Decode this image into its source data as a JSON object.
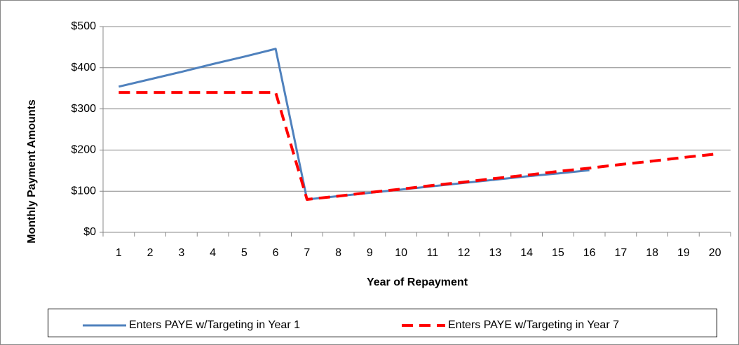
{
  "chart_data": {
    "type": "line",
    "x_label": "Year of Repayment",
    "y_label": "Monthly Payment Amounts",
    "categories": [
      "1",
      "2",
      "3",
      "4",
      "5",
      "6",
      "7",
      "8",
      "9",
      "10",
      "11",
      "12",
      "13",
      "14",
      "15",
      "16",
      "17",
      "18",
      "19",
      "20"
    ],
    "series": [
      {
        "name": "Enters PAYE w/Targeting in Year 1",
        "color": "#4f81bd",
        "dash": false,
        "values": [
          354,
          372,
          390,
          409,
          427,
          446,
          80,
          88,
          96,
          104,
          112,
          120,
          128,
          136,
          143,
          151,
          null,
          null,
          null,
          null
        ]
      },
      {
        "name": "Enters PAYE w/Targeting in Year 7",
        "color": "#ff0000",
        "dash": true,
        "values": [
          340,
          340,
          340,
          340,
          340,
          340,
          80,
          88,
          97,
          105,
          114,
          122,
          131,
          139,
          148,
          156,
          165,
          173,
          182,
          190
        ]
      }
    ],
    "ylim": [
      0,
      500
    ],
    "yticks": [
      {
        "value": 0,
        "label": "$0"
      },
      {
        "value": 100,
        "label": "$100"
      },
      {
        "value": 200,
        "label": "$200"
      },
      {
        "value": 300,
        "label": "$300"
      },
      {
        "value": 400,
        "label": "$400"
      },
      {
        "value": 500,
        "label": "$500"
      }
    ],
    "grid": true,
    "legend": "bottom"
  }
}
